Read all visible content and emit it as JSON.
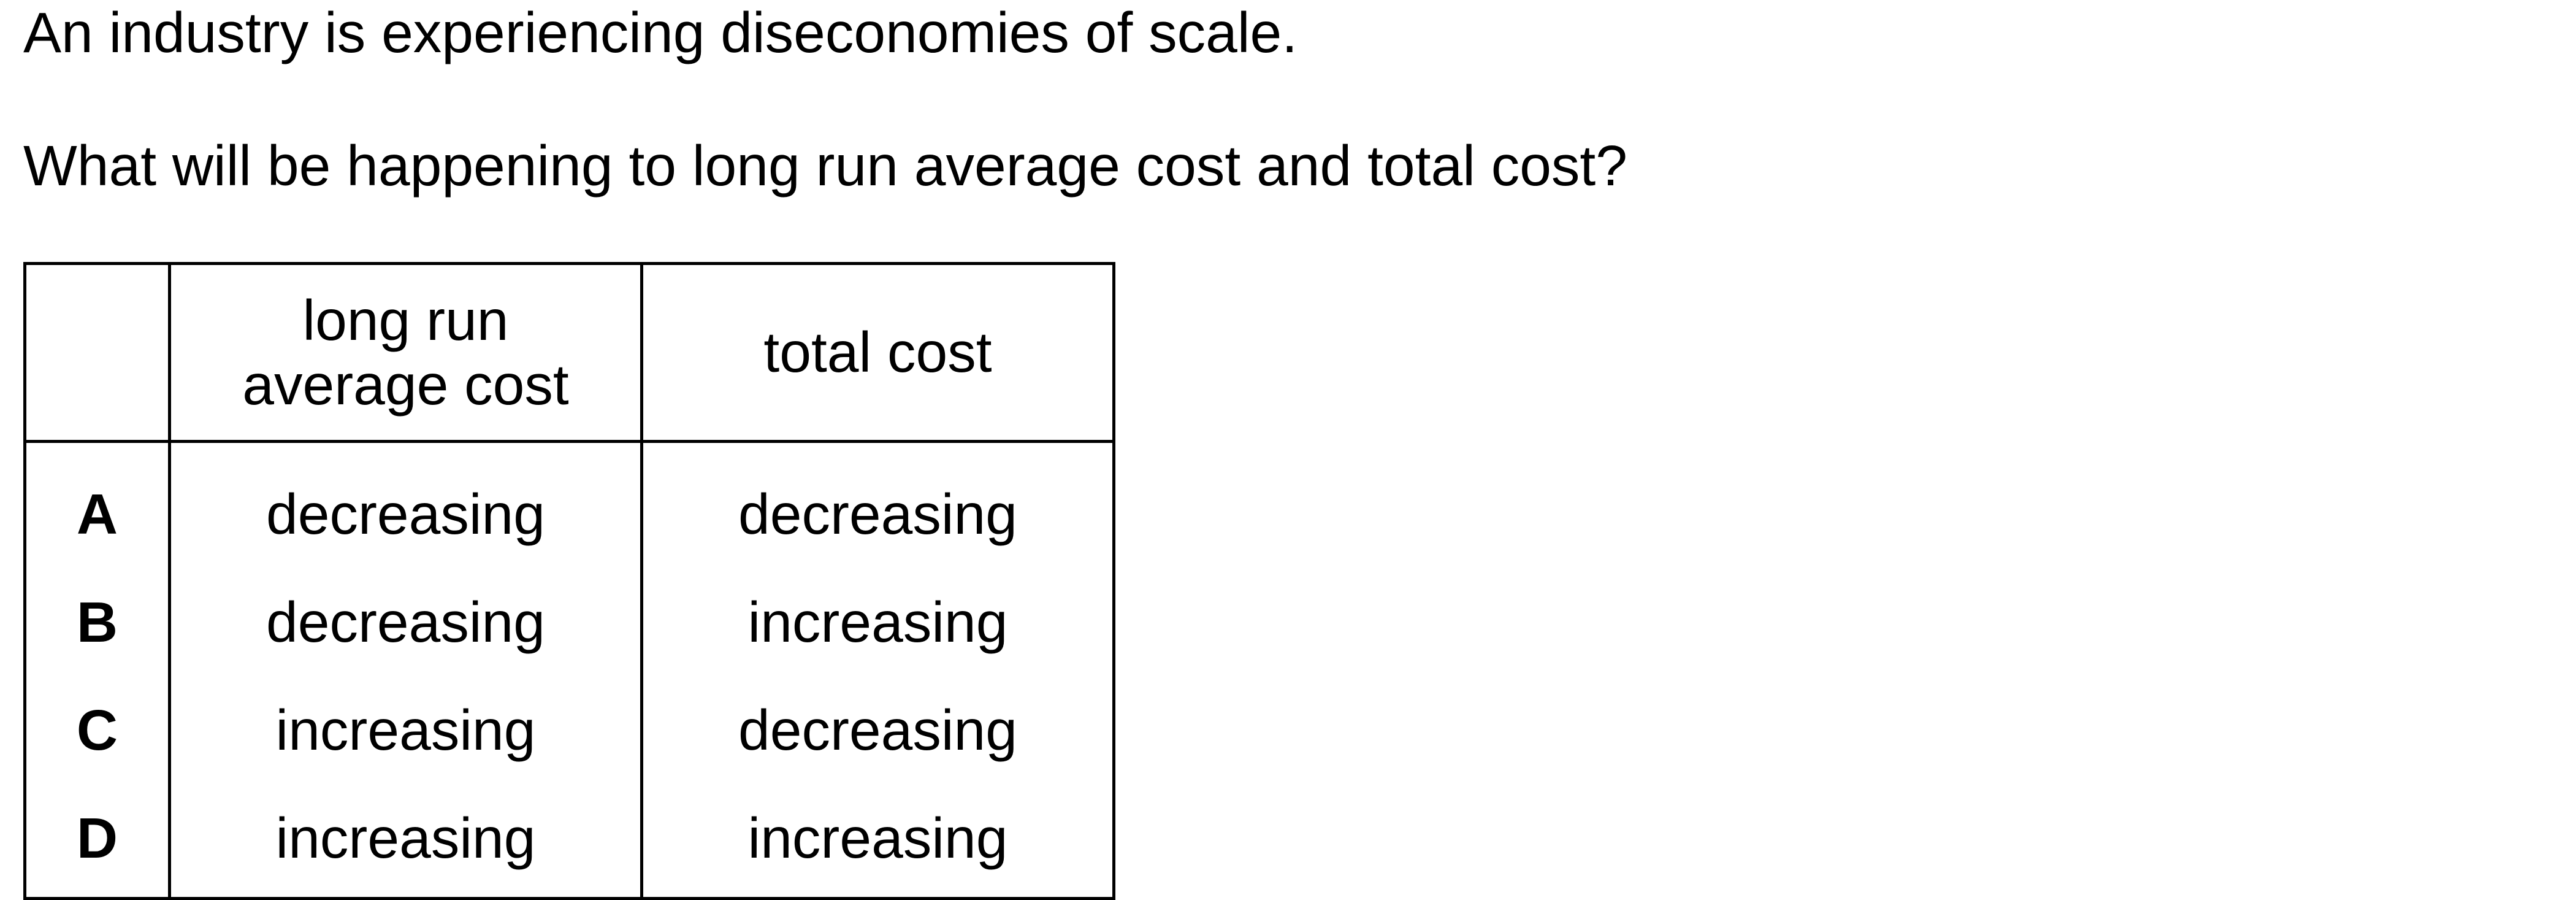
{
  "question": {
    "line1": "An industry is experiencing diseconomies of scale.",
    "line2": "What will be happening to long run average cost and total cost?"
  },
  "table": {
    "headers": {
      "blank": "",
      "col1_line1": "long run",
      "col1_line2": "average cost",
      "col2": "total cost"
    },
    "rows": [
      {
        "letter": "A",
        "lrac": "decreasing",
        "tc": "decreasing"
      },
      {
        "letter": "B",
        "lrac": "decreasing",
        "tc": "increasing"
      },
      {
        "letter": "C",
        "lrac": "increasing",
        "tc": "decreasing"
      },
      {
        "letter": "D",
        "lrac": "increasing",
        "tc": "increasing"
      }
    ]
  }
}
